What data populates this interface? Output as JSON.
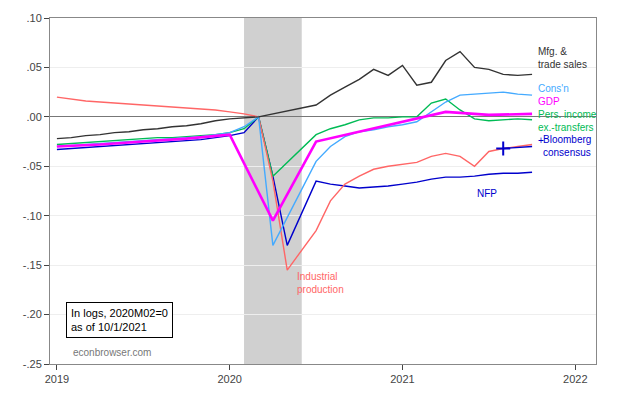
{
  "chart_data": {
    "type": "line",
    "xlim": [
      2018.96,
      2022.12
    ],
    "xticks": [
      2019,
      2020,
      2021,
      2022
    ],
    "ylim": [
      -0.25,
      0.1
    ],
    "yticks": [
      {
        "value": -0.25,
        "label": "-.25"
      },
      {
        "value": -0.2,
        "label": "-.20"
      },
      {
        "value": -0.15,
        "label": "-.15"
      },
      {
        "value": -0.1,
        "label": "-.10"
      },
      {
        "value": -0.05,
        "label": "-.05"
      },
      {
        "value": 0.0,
        "label": ".00"
      },
      {
        "value": 0.05,
        "label": ".05"
      },
      {
        "value": 0.1,
        "label": ".10"
      }
    ],
    "grid": "y",
    "recession": [
      2020.083,
      2020.417
    ],
    "series": [
      {
        "color": "#0000cc",
        "x": [
          2019.0,
          2019.083,
          2019.167,
          2019.25,
          2019.333,
          2019.417,
          2019.5,
          2019.583,
          2019.667,
          2019.75,
          2019.833,
          2019.917,
          2020.0,
          2020.083,
          2020.167,
          2020.25,
          2020.333,
          2020.5,
          2020.583,
          2020.667,
          2020.75,
          2020.833,
          2020.917,
          2021.0,
          2021.083,
          2021.167,
          2021.25,
          2021.333,
          2021.417,
          2021.5,
          2021.583,
          2021.667,
          2021.75
        ],
        "values": [
          -0.033,
          -0.032,
          -0.031,
          -0.03,
          -0.029,
          -0.028,
          -0.027,
          -0.026,
          -0.025,
          -0.024,
          -0.023,
          -0.021,
          -0.019,
          -0.016,
          0.0,
          -0.06,
          -0.13,
          -0.065,
          -0.068,
          -0.07,
          -0.072,
          -0.071,
          -0.07,
          -0.068,
          -0.066,
          -0.063,
          -0.061,
          -0.061,
          -0.06,
          -0.058,
          -0.057,
          -0.057,
          -0.056
        ]
      },
      {
        "color": "#00bb55",
        "x": [
          2019.0,
          2019.083,
          2019.167,
          2019.25,
          2019.333,
          2019.417,
          2019.5,
          2019.583,
          2019.667,
          2019.75,
          2019.833,
          2019.917,
          2020.0,
          2020.083,
          2020.167,
          2020.25,
          2020.5,
          2020.583,
          2020.667,
          2020.75,
          2020.833,
          2020.917,
          2021.0,
          2021.083,
          2021.167,
          2021.25,
          2021.333,
          2021.417,
          2021.5,
          2021.583,
          2021.667,
          2021.75
        ],
        "values": [
          -0.028,
          -0.027,
          -0.026,
          -0.025,
          -0.024,
          -0.023,
          -0.022,
          -0.021,
          -0.021,
          -0.02,
          -0.019,
          -0.018,
          -0.016,
          -0.012,
          0.0,
          -0.06,
          -0.018,
          -0.012,
          -0.008,
          -0.003,
          -0.001,
          -0.001,
          0.0,
          0.0,
          0.014,
          0.018,
          0.007,
          -0.002,
          -0.004,
          -0.003,
          -0.002,
          -0.003
        ]
      },
      {
        "color": "#ff6666",
        "x": [
          2019.0,
          2019.083,
          2019.167,
          2019.25,
          2019.333,
          2019.417,
          2019.5,
          2019.583,
          2019.667,
          2019.75,
          2019.833,
          2019.917,
          2020.0,
          2020.083,
          2020.167,
          2020.25,
          2020.333,
          2020.5,
          2020.583,
          2020.667,
          2020.75,
          2020.833,
          2020.917,
          2021.0,
          2021.083,
          2021.167,
          2021.25,
          2021.333,
          2021.417,
          2021.5,
          2021.583,
          2021.667,
          2021.75
        ],
        "values": [
          0.02,
          0.018,
          0.016,
          0.015,
          0.014,
          0.013,
          0.012,
          0.011,
          0.01,
          0.009,
          0.008,
          0.007,
          0.005,
          0.003,
          0.0,
          -0.065,
          -0.155,
          -0.115,
          -0.085,
          -0.068,
          -0.06,
          -0.053,
          -0.05,
          -0.048,
          -0.046,
          -0.04,
          -0.037,
          -0.04,
          -0.05,
          -0.035,
          -0.032,
          -0.03,
          -0.028
        ]
      },
      {
        "color": "#44aaff",
        "x": [
          2019.0,
          2019.083,
          2019.167,
          2019.25,
          2019.333,
          2019.417,
          2019.5,
          2019.583,
          2019.667,
          2019.75,
          2019.833,
          2019.917,
          2020.0,
          2020.083,
          2020.167,
          2020.25,
          2020.5,
          2020.583,
          2020.667,
          2020.75,
          2020.833,
          2020.917,
          2021.0,
          2021.083,
          2021.167,
          2021.25,
          2021.333,
          2021.417,
          2021.5,
          2021.583,
          2021.667,
          2021.75
        ],
        "values": [
          -0.03,
          -0.029,
          -0.028,
          -0.027,
          -0.026,
          -0.025,
          -0.024,
          -0.023,
          -0.022,
          -0.021,
          -0.02,
          -0.018,
          -0.016,
          -0.01,
          0.0,
          -0.13,
          -0.045,
          -0.03,
          -0.02,
          -0.015,
          -0.013,
          -0.01,
          -0.008,
          -0.005,
          0.005,
          0.015,
          0.022,
          0.023,
          0.024,
          0.025,
          0.023,
          0.022
        ]
      },
      {
        "color": "#ff00ff",
        "x": [
          2019.0,
          2019.25,
          2019.5,
          2019.75,
          2020.0,
          2020.25,
          2020.5,
          2020.75,
          2021.0,
          2021.25,
          2021.5,
          2021.75
        ],
        "values": [
          -0.03,
          -0.028,
          -0.025,
          -0.022,
          -0.018,
          -0.105,
          -0.025,
          -0.015,
          -0.005,
          0.005,
          0.002,
          0.003
        ]
      },
      {
        "color": "#333333",
        "x": [
          2019.0,
          2019.083,
          2019.167,
          2019.25,
          2019.333,
          2019.417,
          2019.5,
          2019.583,
          2019.667,
          2019.75,
          2019.833,
          2019.917,
          2020.0,
          2020.083,
          2020.167,
          2020.5,
          2020.583,
          2020.667,
          2020.75,
          2020.833,
          2020.917,
          2021.0,
          2021.083,
          2021.167,
          2021.25,
          2021.333,
          2021.417,
          2021.5,
          2021.583,
          2021.667,
          2021.75
        ],
        "values": [
          -0.022,
          -0.021,
          -0.019,
          -0.018,
          -0.016,
          -0.015,
          -0.013,
          -0.012,
          -0.01,
          -0.009,
          -0.007,
          -0.004,
          -0.002,
          -0.001,
          0.0,
          0.012,
          0.022,
          0.03,
          0.038,
          0.048,
          0.042,
          0.052,
          0.032,
          0.035,
          0.057,
          0.066,
          0.05,
          0.048,
          0.043,
          0.042,
          0.043
        ]
      },
      {
        "color": "#0000cc",
        "x": [
          2021.583,
          2021.667,
          2021.75
        ],
        "values": [
          -0.032,
          -0.031,
          -0.03
        ]
      },
      {
        "color": "#0000cc",
        "type": "scatter",
        "marker": "plus",
        "x": [
          2021.583
        ],
        "values": [
          -0.032
        ]
      }
    ],
    "annotations": [
      {
        "text": "Mfg. &\ntrade sales",
        "color": "#333333"
      },
      {
        "text": "Cons'n",
        "color": "#44aaff"
      },
      {
        "text": "GDP",
        "color": "#ff00ff"
      },
      {
        "text": "Pers. income\nex.-transfers",
        "color": "#00bb55"
      },
      {
        "text": "+",
        "color": "#0000cc"
      },
      {
        "text": "Bloomberg\nconsensus",
        "color": "#0000cc"
      },
      {
        "text": "NFP",
        "color": "#0000cc"
      },
      {
        "text": "Industrial\nproduction",
        "color": "#ff6666"
      },
      {
        "text": "In logs, 2020M02=0\nas of 10/1/2021",
        "color": "#000000"
      },
      {
        "text": "econbrowser.com",
        "color": "#777777"
      }
    ]
  }
}
